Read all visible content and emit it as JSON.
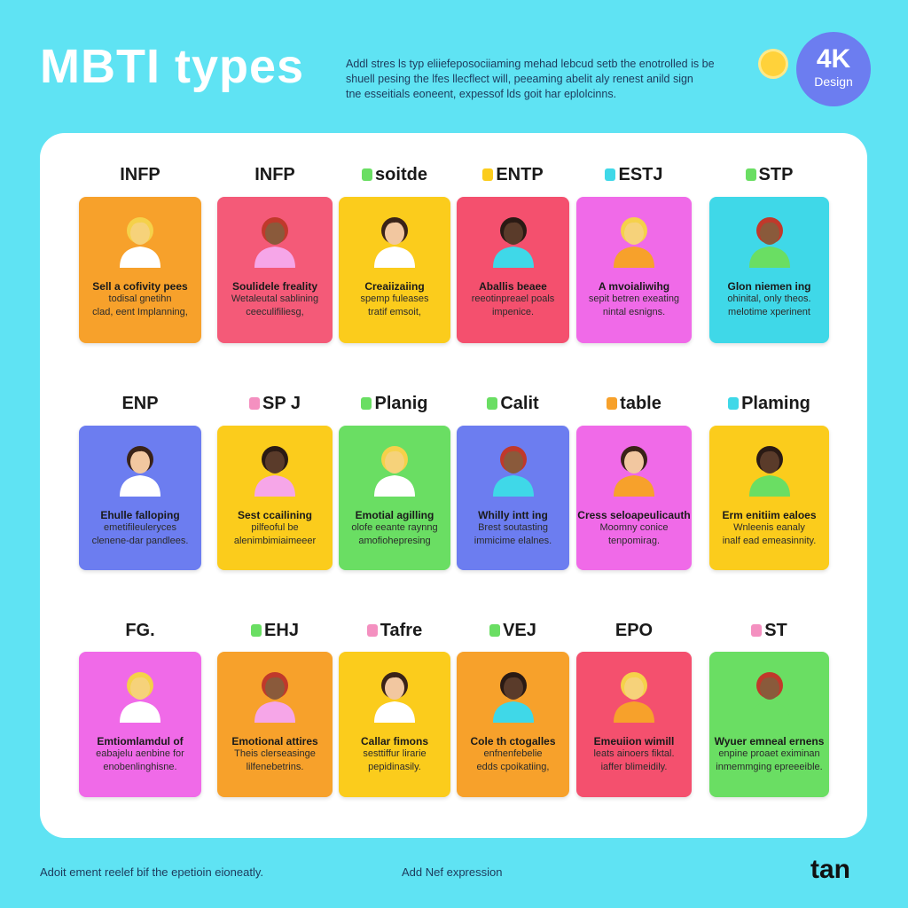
{
  "header": {
    "title": "MBTI types",
    "description": [
      "Addl stres ls typ eliiefeposociiaming mehad lebcud setb the enotrolled is be",
      "shuell pesing the lfes llecflect will, peeaming abelit aly renest anild sign",
      "tne esseitials eoneent, expessof lds goit har eplolcinns."
    ],
    "badge": {
      "big": "4K",
      "small": "Design"
    }
  },
  "cards": [
    {
      "label": "INFP",
      "color": "#f7a12b",
      "heading": "Sell a cofivity pees",
      "lines": [
        "todisal gnetihn",
        "clad, eent Implanning,"
      ]
    },
    {
      "label": "INFP",
      "color": "#f45a78",
      "heading": "Soulidele freality",
      "lines": [
        "Wetaleutal sablining",
        "ceeculifiliesg,"
      ]
    },
    {
      "label": "soitde",
      "badge_color": "#6ade63",
      "color": "#fbcc1c",
      "heading": "Creaiizaiing",
      "lines": [
        "spemp fuleases",
        "tratif emsoit,"
      ]
    },
    {
      "label": "ENTP",
      "badge_color": "#fbcc1c",
      "color": "#f4506e",
      "heading": "Aballis beaee",
      "lines": [
        "reeotinpreael poals",
        "impenice."
      ]
    },
    {
      "label": "ESTJ",
      "badge_color": "#3fd8e8",
      "color": "#f06ae8",
      "heading": "A mvoialiwihg",
      "lines": [
        "sepit betren exeating",
        "nintal esnigns."
      ]
    },
    {
      "label": "STP",
      "badge_color": "#6ade63",
      "color": "#3fd8e8",
      "heading": "Glon niemen ing",
      "lines": [
        "ohinital, only theos.",
        "melotime xperinent"
      ]
    },
    {
      "label": "ENP",
      "color": "#6c7df0",
      "heading": "Ehulle falloping",
      "lines": [
        "emetifileuleryces",
        "clenene-dar pandlees."
      ]
    },
    {
      "label": "SP J",
      "badge_color": "#f490c0",
      "color": "#fbcc1c",
      "heading": "Sest ccailining",
      "lines": [
        "pilfeoful be",
        "alenimbimiaimeeer"
      ]
    },
    {
      "label": "Planig",
      "badge_color": "#6ade63",
      "color": "#6ade63",
      "heading": "Emotial agilling",
      "lines": [
        "olofe eeante raynng",
        "amofiohepresing"
      ]
    },
    {
      "label": "Calit",
      "badge_color": "#6ade63",
      "color": "#6c7df0",
      "heading": "Whilly intt ing",
      "lines": [
        "Brest soutasting",
        "immicime elalnes."
      ]
    },
    {
      "label": "table",
      "badge_color": "#f7a12b",
      "color": "#f06ae8",
      "heading": "Cress seloapeulicauth",
      "lines": [
        "Moomny conice",
        "tenpomirag."
      ]
    },
    {
      "label": "Plaming",
      "badge_color": "#3fd8e8",
      "color": "#fbcc1c",
      "heading": "Erm enitiim ealoes",
      "lines": [
        "Wnleenis eanaly",
        "inalf ead emeasinnity."
      ]
    },
    {
      "label": "FG.",
      "color": "#f06ae8",
      "heading": "Emtiomlamdul of",
      "lines": [
        "eabajelu aenbine for",
        "enobenlinghisne."
      ]
    },
    {
      "label": "EHJ",
      "badge_color": "#6ade63",
      "color": "#f7a12b",
      "heading": "Emotional attires",
      "lines": [
        "Theis clerseasinge",
        "lilfenebetrins."
      ]
    },
    {
      "label": "Tafre",
      "badge_color": "#f490c0",
      "color": "#fbcc1c",
      "heading": "Callar fimons",
      "lines": [
        "sesttiffur lirarie",
        "pepidinasily."
      ]
    },
    {
      "label": "VEJ",
      "badge_color": "#6ade63",
      "color": "#f7a12b",
      "heading": "Cole th ctogalles",
      "lines": [
        "enfnenfebelie",
        "edds cpoikatiing,"
      ]
    },
    {
      "label": "EPO",
      "color": "#f4506e",
      "heading": "Emeuiion wimill",
      "lines": [
        "leats ainoers fiktal.",
        "iaffer blimeidily."
      ]
    },
    {
      "label": "ST",
      "badge_color": "#f490c0",
      "color": "#6ade63",
      "heading": "Wyuer emneal ernens",
      "lines": [
        "enpine proaet eximinan",
        "inmemmging epreeeible."
      ]
    }
  ],
  "footer": {
    "left": "Adoit ement reelef bif the epetioin eioneatly.",
    "center": "Add Nef expression",
    "logo": "tan"
  }
}
